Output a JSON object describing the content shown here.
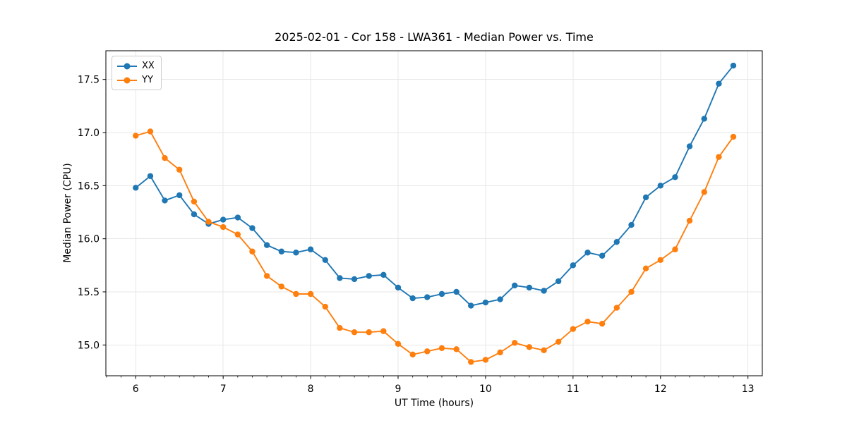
{
  "figure": {
    "title": "2025-02-01 - Cor 158 - LWA361 - Median Power vs. Time",
    "xlabel": "UT Time (hours)",
    "ylabel": "Median Power (CPU)"
  },
  "legend": {
    "entries": [
      {
        "label": "XX",
        "color": "#1f77b4"
      },
      {
        "label": "YY",
        "color": "#ff7f0e"
      }
    ]
  },
  "chart_data": {
    "type": "line",
    "title": "2025-02-01 - Cor 158 - LWA361 - Median Power vs. Time",
    "xlabel": "UT Time (hours)",
    "ylabel": "Median Power (CPU)",
    "x": [
      6.0,
      6.167,
      6.333,
      6.5,
      6.667,
      6.833,
      7.0,
      7.167,
      7.333,
      7.5,
      7.667,
      7.833,
      8.0,
      8.167,
      8.333,
      8.5,
      8.667,
      8.833,
      9.0,
      9.167,
      9.333,
      9.5,
      9.667,
      9.833,
      10.0,
      10.167,
      10.333,
      10.5,
      10.667,
      10.833,
      11.0,
      11.167,
      11.333,
      11.5,
      11.667,
      11.833,
      12.0,
      12.167,
      12.333,
      12.5,
      12.667,
      12.833
    ],
    "series": [
      {
        "name": "XX",
        "color": "#1f77b4",
        "values": [
          16.48,
          16.59,
          16.36,
          16.41,
          16.23,
          16.14,
          16.18,
          16.2,
          16.1,
          15.94,
          15.88,
          15.87,
          15.9,
          15.8,
          15.63,
          15.62,
          15.65,
          15.66,
          15.54,
          15.44,
          15.45,
          15.48,
          15.5,
          15.37,
          15.4,
          15.43,
          15.56,
          15.54,
          15.51,
          15.6,
          15.75,
          15.87,
          15.84,
          15.97,
          16.13,
          16.39,
          16.5,
          16.58,
          16.87,
          17.13,
          17.46,
          17.63
        ]
      },
      {
        "name": "YY",
        "color": "#ff7f0e",
        "values": [
          16.97,
          17.01,
          16.76,
          16.65,
          16.35,
          16.16,
          16.11,
          16.04,
          15.88,
          15.65,
          15.55,
          15.48,
          15.48,
          15.36,
          15.16,
          15.12,
          15.12,
          15.13,
          15.01,
          14.91,
          14.94,
          14.97,
          14.96,
          14.84,
          14.86,
          14.93,
          15.02,
          14.98,
          14.95,
          15.03,
          15.15,
          15.22,
          15.2,
          15.35,
          15.5,
          15.72,
          15.8,
          15.9,
          16.17,
          16.44,
          16.77,
          16.96
        ]
      }
    ],
    "xlim": [
      5.659,
      13.164
    ],
    "ylim": [
      14.71,
      17.77
    ],
    "xticks": [
      6,
      7,
      8,
      9,
      10,
      11,
      12,
      13
    ],
    "yticks": [
      15.0,
      15.5,
      16.0,
      16.5,
      17.0,
      17.5
    ],
    "x_minor_step_hours": 0.16667,
    "grid": true,
    "legend_position": "upper left",
    "marker": "circle",
    "colors": {
      "grid": "#e7e7e7",
      "spine": "#000000",
      "text": "#000000"
    }
  }
}
